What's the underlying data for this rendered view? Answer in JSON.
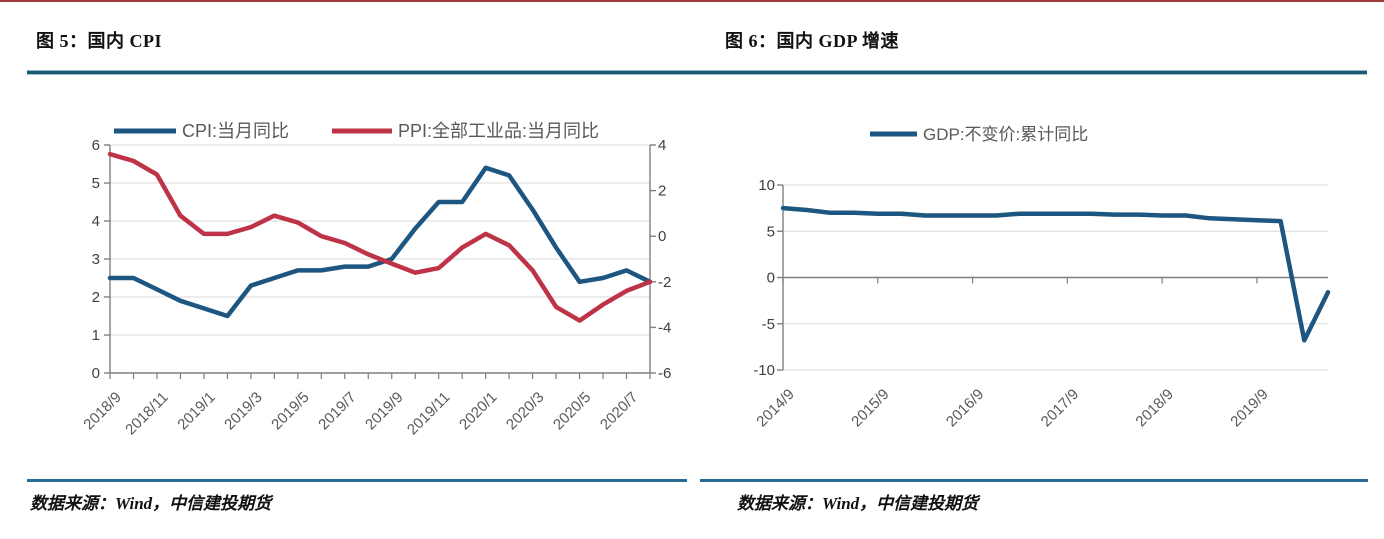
{
  "figures": [
    {
      "title": "图 5：国内 CPI",
      "source": "数据来源：Wind，中信建投期货"
    },
    {
      "title": "图 6：国内 GDP 增速",
      "source": "数据来源：Wind，中信建投期货"
    }
  ],
  "colors": {
    "series_blue": "#1D5680",
    "series_red": "#BE3347",
    "grid": "#D9D9D9",
    "axis": "#7F7F7F",
    "axis_text": "#404040",
    "label_text": "#595959",
    "separator_teal": "#1F5873",
    "separator_blue": "#2A6B96",
    "top_rule": "#9E3B3B"
  },
  "chart_data": [
    {
      "type": "line",
      "title": "图 5：国内 CPI",
      "x": [
        "2018/9",
        "2018/10",
        "2018/11",
        "2018/12",
        "2019/1",
        "2019/2",
        "2019/3",
        "2019/4",
        "2019/5",
        "2019/6",
        "2019/7",
        "2019/8",
        "2019/9",
        "2019/10",
        "2019/11",
        "2019/12",
        "2020/1",
        "2020/2",
        "2020/3",
        "2020/4",
        "2020/5",
        "2020/6",
        "2020/7",
        "2020/8"
      ],
      "x_tick_labels": [
        "2018/9",
        "2018/11",
        "2019/1",
        "2019/3",
        "2019/5",
        "2019/7",
        "2019/9",
        "2019/11",
        "2020/1",
        "2020/3",
        "2020/5",
        "2020/7"
      ],
      "left_axis": {
        "min": 0,
        "max": 6,
        "ticks": [
          0,
          1,
          2,
          3,
          4,
          5,
          6
        ]
      },
      "right_axis": {
        "min": -6,
        "max": 4,
        "ticks": [
          4,
          2,
          0,
          -2,
          -4,
          -6
        ]
      },
      "grid": true,
      "legend_position": "top",
      "series": [
        {
          "name": "CPI:当月同比",
          "axis": "left",
          "color": "#1D5680",
          "values": [
            2.5,
            2.5,
            2.2,
            1.9,
            1.7,
            1.5,
            2.3,
            2.5,
            2.7,
            2.7,
            2.8,
            2.8,
            3.0,
            3.8,
            4.5,
            4.5,
            5.4,
            5.2,
            4.3,
            3.3,
            2.4,
            2.5,
            2.7,
            2.4
          ]
        },
        {
          "name": "PPI:全部工业品:当月同比",
          "axis": "right",
          "color": "#BE3347",
          "values": [
            3.6,
            3.3,
            2.7,
            0.9,
            0.1,
            0.1,
            0.4,
            0.9,
            0.6,
            0.0,
            -0.3,
            -0.8,
            -1.2,
            -1.6,
            -1.4,
            -0.5,
            0.1,
            -0.4,
            -1.5,
            -3.1,
            -3.7,
            -3.0,
            -2.4,
            -2.0
          ]
        }
      ]
    },
    {
      "type": "line",
      "title": "图 6：国内 GDP 增速",
      "x": [
        "2014/9",
        "2014/12",
        "2015/3",
        "2015/6",
        "2015/9",
        "2015/12",
        "2016/3",
        "2016/6",
        "2016/9",
        "2016/12",
        "2017/3",
        "2017/6",
        "2017/9",
        "2017/12",
        "2018/3",
        "2018/6",
        "2018/9",
        "2018/12",
        "2019/3",
        "2019/6",
        "2019/9",
        "2019/12",
        "2020/3",
        "2020/6"
      ],
      "x_tick_labels": [
        "2014/9",
        "2015/9",
        "2016/9",
        "2017/9",
        "2018/9",
        "2019/9"
      ],
      "left_axis": {
        "min": -10,
        "max": 10,
        "ticks": [
          10,
          5,
          0,
          -5,
          -10
        ]
      },
      "grid": true,
      "legend_position": "top",
      "series": [
        {
          "name": "GDP:不变价:累计同比",
          "axis": "left",
          "color": "#1D5680",
          "values": [
            7.5,
            7.3,
            7.0,
            7.0,
            6.9,
            6.9,
            6.7,
            6.7,
            6.7,
            6.7,
            6.9,
            6.9,
            6.9,
            6.9,
            6.8,
            6.8,
            6.7,
            6.7,
            6.4,
            6.3,
            6.2,
            6.1,
            -6.8,
            -1.6
          ]
        }
      ]
    }
  ]
}
